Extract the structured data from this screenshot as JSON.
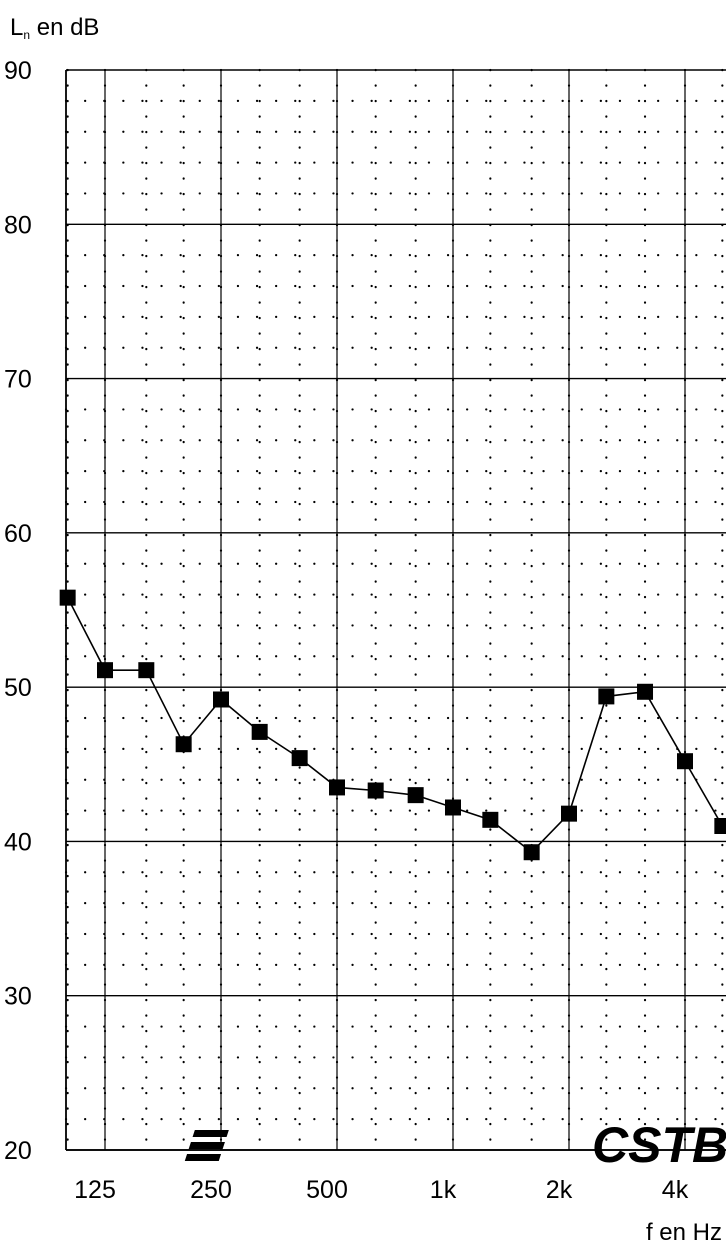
{
  "chart_data": {
    "type": "line",
    "title": "",
    "ylabel_main": "L",
    "ylabel_sub": "n",
    "ylabel_rest": " en dB",
    "xlabel": "f en Hz",
    "ylim": [
      20,
      90
    ],
    "y_ticks": [
      "20",
      "30",
      "40",
      "50",
      "60",
      "70",
      "80",
      "90"
    ],
    "x_scale": "log",
    "x_tick_labels": [
      {
        "f": 125,
        "label": "125"
      },
      {
        "f": 250,
        "label": "250"
      },
      {
        "f": 500,
        "label": "500"
      },
      {
        "f": 1000,
        "label": "1k"
      },
      {
        "f": 2000,
        "label": "2k"
      },
      {
        "f": 4000,
        "label": "4k"
      }
    ],
    "grid": true,
    "series": [
      {
        "marker": "square",
        "x": [
          100,
          125,
          160,
          200,
          250,
          315,
          400,
          500,
          630,
          800,
          1000,
          1250,
          1600,
          2000,
          2500,
          3150,
          4000,
          5000
        ],
        "values": [
          55.8,
          51.1,
          51.1,
          46.3,
          49.2,
          47.1,
          45.4,
          43.5,
          43.3,
          43.0,
          42.2,
          41.4,
          39.3,
          41.8,
          49.4,
          49.7,
          45.2,
          41.0
        ]
      }
    ],
    "logo": "CSTB"
  }
}
